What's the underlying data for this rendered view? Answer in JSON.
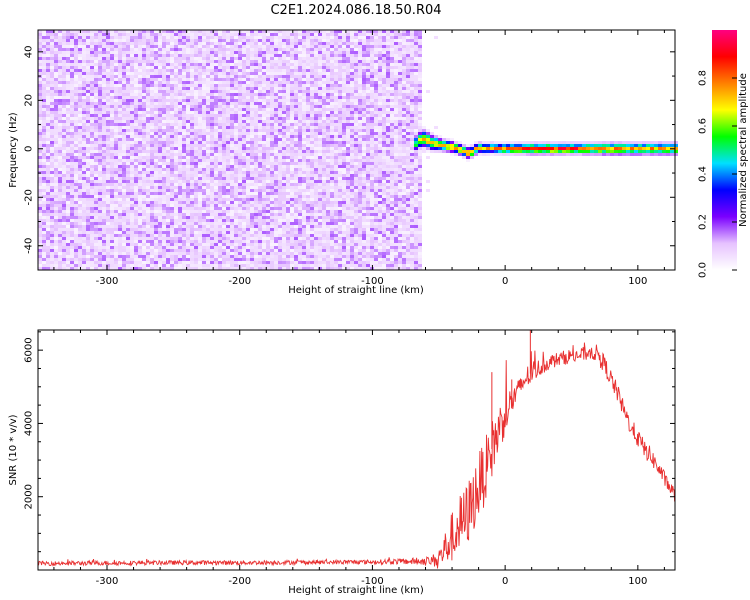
{
  "title": "C2E1.2024.086.18.50.R04",
  "chart_data": [
    {
      "type": "heatmap",
      "xlabel": "Height of straight line (km)",
      "ylabel": "Frequency (Hz)",
      "xlim": [
        -352,
        128
      ],
      "ylim": [
        -50,
        49
      ],
      "xticks": [
        -300,
        -200,
        -100,
        0,
        100
      ],
      "yticks": [
        -40,
        -20,
        0,
        20,
        40
      ],
      "colorbar": {
        "label": "Normalized spectral amplitude",
        "range": [
          0,
          1
        ],
        "ticks": [
          "0.0",
          "0.2",
          "0.4",
          "0.6",
          "0.8"
        ],
        "tick_values": [
          0.0,
          0.2,
          0.4,
          0.6,
          0.8
        ],
        "colormap": [
          "#ffffff",
          "#e6c2ff",
          "#7a00ff",
          "#0000ff",
          "#00e0ff",
          "#00ff00",
          "#ffff00",
          "#ff8000",
          "#ff0000",
          "#ff0080"
        ]
      },
      "noise_region_x": [
        -352,
        -62
      ],
      "noise_amplitude": 0.1,
      "signal_band": {
        "x": [
          -68,
          -62,
          -55,
          -48,
          -40,
          -33,
          -27,
          -20,
          -15,
          -10,
          -5,
          0,
          20,
          40,
          60,
          80,
          100,
          128
        ],
        "freq": [
          1.8,
          4.5,
          2.5,
          1.5,
          0.8,
          -0.5,
          -2.0,
          0.5,
          0.0,
          0.3,
          0.0,
          0.0,
          0.0,
          0.0,
          0.0,
          0.0,
          0.0,
          0.0
        ],
        "halfwidth": [
          3.0,
          3.2,
          2.8,
          2.2,
          2.0,
          2.0,
          2.0,
          2.0,
          1.8,
          1.8,
          1.8,
          1.8,
          2.0,
          2.0,
          2.0,
          2.2,
          2.2,
          2.2
        ],
        "peak": [
          0.55,
          0.7,
          0.75,
          0.8,
          0.75,
          0.75,
          0.8,
          0.7,
          0.7,
          0.75,
          0.8,
          0.85,
          0.9,
          0.9,
          0.85,
          0.8,
          0.75,
          0.75
        ]
      }
    },
    {
      "type": "line",
      "xlabel": "Height of straight line (km)",
      "ylabel": "SNR (10 * v/v)",
      "xlim": [
        -352,
        128
      ],
      "ylim": [
        0,
        6550
      ],
      "xticks": [
        -300,
        -200,
        -100,
        0,
        100
      ],
      "yticks": [
        2000,
        4000,
        6000
      ],
      "series": [
        {
          "color": "#e83030",
          "x": [
            -352,
            -300,
            -250,
            -200,
            -150,
            -100,
            -62,
            -55,
            -50,
            -45,
            -40,
            -35,
            -30,
            -25,
            -20,
            -15,
            -10,
            -5,
            0,
            5,
            10,
            15,
            20,
            25,
            30,
            35,
            40,
            45,
            50,
            55,
            60,
            65,
            70,
            75,
            80,
            85,
            90,
            95,
            100,
            105,
            110,
            115,
            120,
            125,
            128
          ],
          "y": [
            180,
            190,
            200,
            200,
            210,
            220,
            240,
            250,
            320,
            600,
            900,
            1200,
            1400,
            1800,
            2300,
            2700,
            3300,
            3800,
            4300,
            4600,
            4900,
            5200,
            5400,
            5500,
            5600,
            5700,
            5750,
            5800,
            5850,
            5850,
            5900,
            5950,
            5900,
            5600,
            5200,
            4800,
            4300,
            3900,
            3600,
            3300,
            3100,
            2800,
            2500,
            2200,
            2050
          ],
          "noise": [
            60,
            60,
            60,
            60,
            60,
            60,
            100,
            150,
            300,
            500,
            700,
            800,
            900,
            900,
            900,
            900,
            800,
            700,
            600,
            400,
            300,
            300,
            350,
            250,
            200,
            200,
            200,
            200,
            200,
            200,
            200,
            200,
            250,
            250,
            250,
            250,
            250,
            250,
            250,
            250,
            250,
            200,
            200,
            200,
            200
          ],
          "peak_spikes": [
            [
              19,
              6550
            ],
            [
              -10,
              5400
            ],
            [
              5,
              5200
            ]
          ]
        }
      ]
    }
  ]
}
